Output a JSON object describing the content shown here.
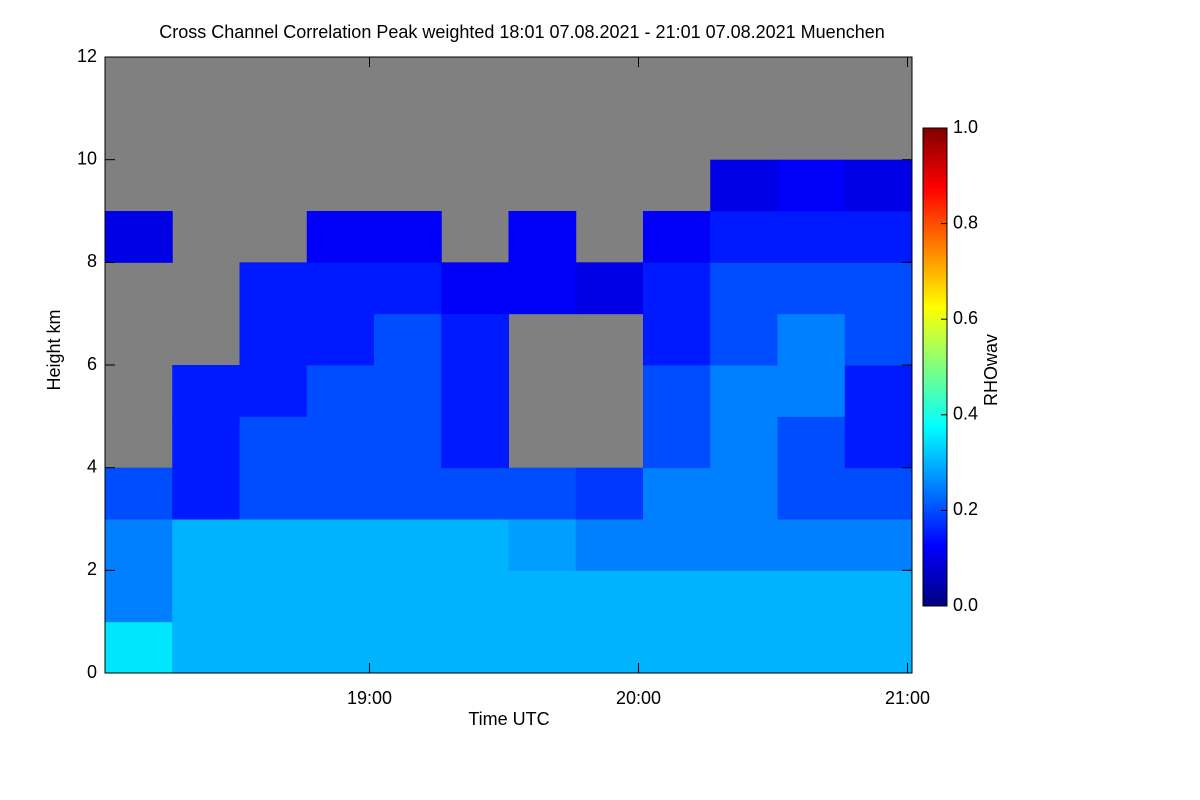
{
  "chart_data": {
    "type": "heatmap",
    "title": "Cross Channel Correlation Peak weighted   18:01 07.08.2021 - 21:01 07.08.2021 Muenchen",
    "x_label": "Time UTC",
    "y_label": "Height km",
    "colorbar_label": "RHOwav",
    "xlim": [
      18.0167,
      21.0167
    ],
    "xticks": [
      {
        "value": 19,
        "label": "19:00"
      },
      {
        "value": 20,
        "label": "20:00"
      },
      {
        "value": 21,
        "label": "21:00"
      }
    ],
    "ylim": [
      0,
      12
    ],
    "yticks": [
      0,
      2,
      4,
      6,
      8,
      10,
      12
    ],
    "xbins": [
      18.0167,
      18.2667,
      18.5167,
      18.7667,
      19.0167,
      19.2667,
      19.5167,
      19.7667,
      20.0167,
      20.2667,
      20.5167,
      20.7667,
      21.0167
    ],
    "ybins": [
      0,
      1,
      2,
      3,
      4,
      5,
      6,
      7,
      8,
      9,
      10,
      11,
      12
    ],
    "z": [
      [
        0.35,
        0.3,
        0.3,
        0.3,
        0.3,
        0.3,
        0.3,
        0.3,
        0.3,
        0.3,
        0.3,
        0.3
      ],
      [
        0.25,
        0.3,
        0.3,
        0.3,
        0.3,
        0.3,
        0.3,
        0.3,
        0.3,
        0.3,
        0.3,
        0.3
      ],
      [
        0.25,
        0.3,
        0.3,
        0.3,
        0.3,
        0.3,
        0.28,
        0.25,
        0.25,
        0.25,
        0.25,
        0.25
      ],
      [
        0.2,
        0.15,
        0.2,
        0.2,
        0.2,
        0.2,
        0.2,
        0.18,
        0.25,
        0.25,
        0.2,
        0.2
      ],
      [
        null,
        0.15,
        0.2,
        0.2,
        0.2,
        0.15,
        null,
        null,
        0.2,
        0.25,
        0.2,
        0.15
      ],
      [
        null,
        0.15,
        0.15,
        0.2,
        0.2,
        0.15,
        null,
        null,
        0.2,
        0.25,
        0.25,
        0.15
      ],
      [
        null,
        null,
        0.15,
        0.15,
        0.2,
        0.15,
        null,
        null,
        0.15,
        0.2,
        0.25,
        0.2
      ],
      [
        null,
        null,
        0.15,
        0.15,
        0.15,
        0.12,
        0.12,
        0.1,
        0.15,
        0.2,
        0.2,
        0.2
      ],
      [
        0.1,
        null,
        null,
        0.12,
        0.12,
        null,
        0.12,
        null,
        0.12,
        0.15,
        0.15,
        0.15
      ],
      [
        null,
        null,
        null,
        null,
        null,
        null,
        null,
        null,
        null,
        0.1,
        0.12,
        0.1
      ],
      [
        null,
        null,
        null,
        null,
        null,
        null,
        null,
        null,
        null,
        null,
        null,
        null
      ],
      [
        null,
        null,
        null,
        null,
        null,
        null,
        null,
        null,
        null,
        null,
        null,
        null
      ]
    ],
    "missing_color": "#808080",
    "colormap": [
      "#000080",
      "#0000ff",
      "#0080ff",
      "#00ffff",
      "#80ff80",
      "#ffff00",
      "#ff8000",
      "#ff0000",
      "#800000"
    ],
    "clim": [
      0,
      1
    ],
    "cticks": [
      {
        "value": 0,
        "label": "0.0"
      },
      0.2,
      0.4,
      0.6,
      0.8,
      {
        "value": 1,
        "label": "1.0"
      }
    ]
  }
}
